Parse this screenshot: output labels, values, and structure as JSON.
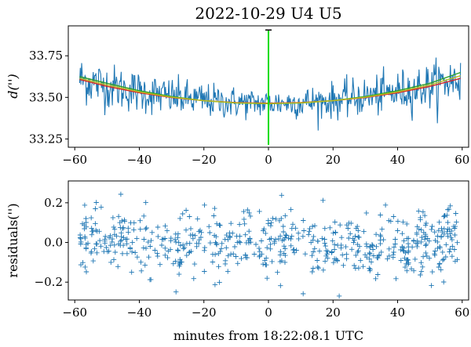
{
  "chart_data": [
    {
      "type": "line",
      "title": "2022-10-29  U4 U5",
      "ylabel": "d('')",
      "xlabel": "",
      "xlim": [
        -62,
        62
      ],
      "ylim": [
        33.2,
        33.93
      ],
      "xticks": [
        -60,
        -40,
        -20,
        0,
        20,
        40,
        60
      ],
      "yticks": [
        33.25,
        33.5,
        33.75
      ],
      "ytick_labels": [
        "33.25",
        "33.50",
        "33.75"
      ],
      "series": [
        {
          "role": "measured",
          "color": "#1f77b4",
          "x_range": [
            -58.5,
            59.5
          ],
          "center": 33.465,
          "curvature": 4.2e-05,
          "noise": 0.07,
          "n": 560
        },
        {
          "role": "fit",
          "color": "#d62728",
          "x": [
            -58.5,
            -50,
            -40,
            -30,
            -20,
            -10,
            0,
            10,
            20,
            30,
            40,
            50,
            59.5
          ],
          "y": [
            33.608,
            33.566,
            33.528,
            33.499,
            33.48,
            33.469,
            33.465,
            33.469,
            33.48,
            33.499,
            33.528,
            33.566,
            33.614
          ]
        },
        {
          "role": "fit",
          "color": "#2ca02c",
          "x": [
            -58.5,
            -50,
            -40,
            -30,
            -20,
            -10,
            0,
            10,
            20,
            30,
            40,
            50,
            59.5
          ],
          "y": [
            33.625,
            33.585,
            33.54,
            33.505,
            33.48,
            33.466,
            33.462,
            33.466,
            33.48,
            33.505,
            33.54,
            33.585,
            33.65
          ]
        },
        {
          "role": "fit",
          "color": "#bcbd22",
          "x": [
            -58.5,
            -50,
            -40,
            -30,
            -20,
            -10,
            0,
            10,
            20,
            30,
            40,
            50,
            59.5
          ],
          "y": [
            33.615,
            33.575,
            33.533,
            33.501,
            33.48,
            33.467,
            33.463,
            33.467,
            33.48,
            33.501,
            33.533,
            33.575,
            33.63
          ]
        }
      ],
      "spike": {
        "x": 0,
        "y_top": 33.905,
        "y_bottom": 33.215,
        "color": "#00dd00"
      }
    },
    {
      "type": "scatter",
      "title": "",
      "ylabel": "residuals('')",
      "xlabel": "minutes from 18:22:08.1 UTC",
      "xlim": [
        -62,
        62
      ],
      "ylim": [
        -0.29,
        0.31
      ],
      "xticks": [
        -60,
        -40,
        -20,
        0,
        20,
        40,
        60
      ],
      "yticks": [
        -0.2,
        0.0,
        0.2
      ],
      "ytick_labels": [
        "−0.2",
        "0.0",
        "0.2"
      ],
      "series": [
        {
          "marker": "+",
          "color": "#1f77b4",
          "x_range": [
            -58.5,
            59.5
          ],
          "noise": 0.075,
          "n": 600
        }
      ]
    }
  ]
}
